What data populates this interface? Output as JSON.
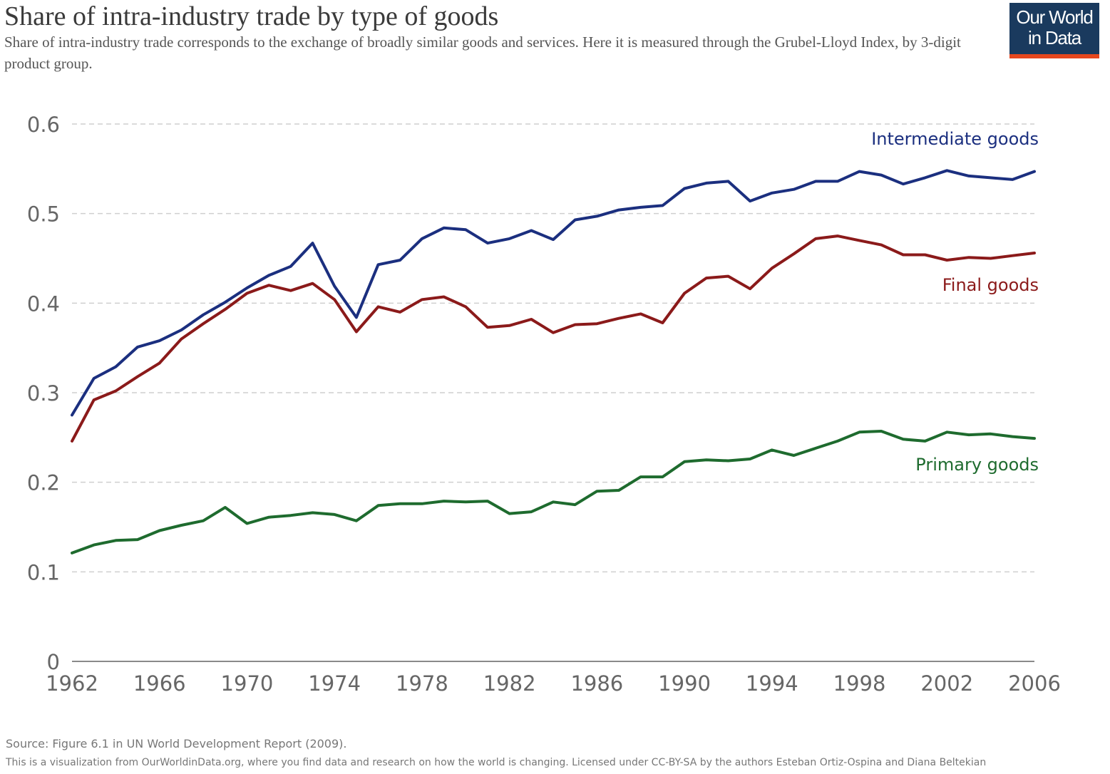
{
  "header": {
    "title": "Share of intra-industry trade by type of goods",
    "subtitle": "Share of intra-industry trade corresponds to the exchange of broadly similar goods and services. Here it is measured through the Grubel-Lloyd Index, by 3-digit product group."
  },
  "logo": {
    "line1": "Our World",
    "line2": "in Data",
    "background": "#1a3a5e",
    "accent": "#e5471e"
  },
  "footer": {
    "source": "Source: Figure 6.1 in UN World Development Report (2009).",
    "notice": "This is a visualization from OurWorldinData.org, where you find data and research on how the world is changing.  Licensed under CC-BY-SA by the authors Esteban Ortiz-Ospina and Diana Beltekian"
  },
  "chart_data": {
    "type": "line",
    "title": "Share of intra-industry trade by type of goods",
    "xlabel": "",
    "ylabel": "",
    "xlim": [
      1962,
      2006
    ],
    "ylim": [
      0,
      0.6
    ],
    "grid": true,
    "legend": "inline-right",
    "x_ticks": [
      "1962",
      "1966",
      "1970",
      "1974",
      "1978",
      "1982",
      "1986",
      "1990",
      "1994",
      "1998",
      "2002",
      "2006"
    ],
    "y_ticks": [
      "0",
      "0.1",
      "0.2",
      "0.3",
      "0.4",
      "0.5",
      "0.6"
    ],
    "x": [
      1962,
      1963,
      1964,
      1965,
      1966,
      1967,
      1968,
      1969,
      1970,
      1971,
      1972,
      1973,
      1974,
      1975,
      1976,
      1977,
      1978,
      1979,
      1980,
      1981,
      1982,
      1983,
      1984,
      1985,
      1986,
      1987,
      1988,
      1989,
      1990,
      1991,
      1992,
      1993,
      1994,
      1995,
      1996,
      1997,
      1998,
      1999,
      2000,
      2001,
      2002,
      2003,
      2004,
      2005,
      2006
    ],
    "series": [
      {
        "name": "Intermediate goods",
        "color": "#1b2f7f",
        "values": [
          0.275,
          0.316,
          0.329,
          0.351,
          0.358,
          0.37,
          0.387,
          0.401,
          0.417,
          0.431,
          0.441,
          0.467,
          0.419,
          0.384,
          0.443,
          0.448,
          0.472,
          0.484,
          0.482,
          0.467,
          0.472,
          0.481,
          0.471,
          0.493,
          0.497,
          0.504,
          0.507,
          0.509,
          0.528,
          0.534,
          0.536,
          0.514,
          0.523,
          0.527,
          0.536,
          0.536,
          0.547,
          0.543,
          0.533,
          0.54,
          0.548,
          0.542,
          0.54,
          0.538,
          0.547
        ]
      },
      {
        "name": "Final goods",
        "color": "#8b1a1a",
        "values": [
          0.246,
          0.292,
          0.302,
          0.318,
          0.333,
          0.36,
          0.377,
          0.393,
          0.411,
          0.42,
          0.414,
          0.422,
          0.404,
          0.368,
          0.396,
          0.39,
          0.404,
          0.407,
          0.396,
          0.373,
          0.375,
          0.382,
          0.367,
          0.376,
          0.377,
          0.383,
          0.388,
          0.378,
          0.411,
          0.428,
          0.43,
          0.416,
          0.439,
          0.455,
          0.472,
          0.475,
          0.47,
          0.465,
          0.454,
          0.454,
          0.448,
          0.451,
          0.45,
          0.453,
          0.456
        ]
      },
      {
        "name": "Primary goods",
        "color": "#1e6b2e",
        "values": [
          0.121,
          0.13,
          0.135,
          0.136,
          0.146,
          0.152,
          0.157,
          0.172,
          0.154,
          0.161,
          0.163,
          0.166,
          0.164,
          0.157,
          0.174,
          0.176,
          0.176,
          0.179,
          0.178,
          0.179,
          0.165,
          0.167,
          0.178,
          0.175,
          0.19,
          0.191,
          0.206,
          0.206,
          0.223,
          0.225,
          0.224,
          0.226,
          0.236,
          0.23,
          0.238,
          0.246,
          0.256,
          0.257,
          0.248,
          0.246,
          0.256,
          0.253,
          0.254,
          0.251,
          0.249
        ]
      }
    ]
  }
}
